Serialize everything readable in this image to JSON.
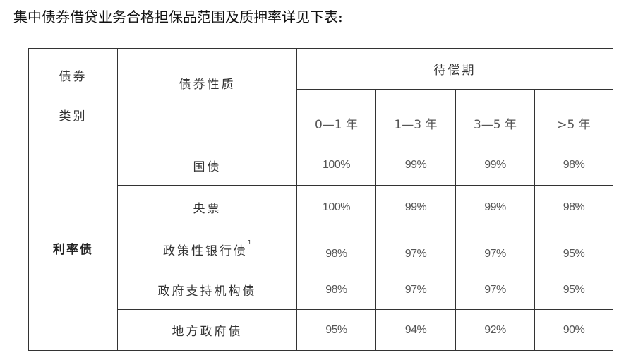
{
  "title": "集中债券借贷业务合格担保品范围及质押率详见下表:",
  "table": {
    "header": {
      "category_line1": "债券",
      "category_line2": "类别",
      "nature": "债券性质",
      "maturity": "待偿期",
      "periods": [
        "0—1 年",
        "1—3 年",
        "3—5 年",
        ">5 年"
      ]
    },
    "group": "利率债",
    "rows": [
      {
        "name": "国债",
        "note": "",
        "values": [
          "100%",
          "99%",
          "99%",
          "98%"
        ]
      },
      {
        "name": "央票",
        "note": "",
        "values": [
          "100%",
          "99%",
          "99%",
          "98%"
        ]
      },
      {
        "name": "政策性银行债",
        "note": "1",
        "values": [
          "98%",
          "97%",
          "97%",
          "95%"
        ]
      },
      {
        "name": "政府支持机构债",
        "note": "",
        "values": [
          "98%",
          "97%",
          "97%",
          "95%"
        ]
      },
      {
        "name": "地方政府债",
        "note": "",
        "values": [
          "95%",
          "94%",
          "92%",
          "90%"
        ]
      }
    ]
  }
}
